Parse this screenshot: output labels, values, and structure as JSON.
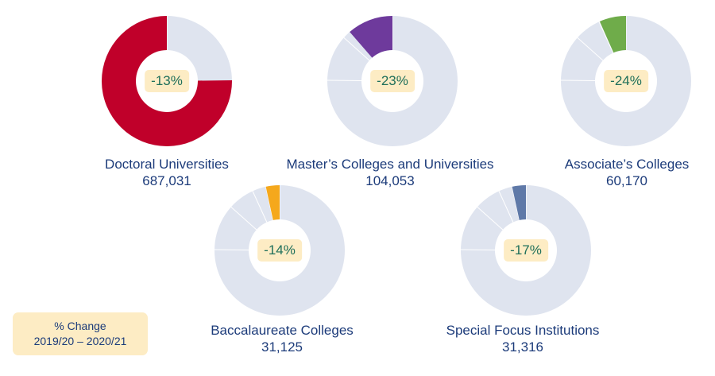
{
  "legend": {
    "line1": "% Change",
    "line2": "2019/20 – 2020/21"
  },
  "colors": {
    "track": "#dfe4ef",
    "separator": "#ffffff"
  },
  "chart_data": [
    {
      "type": "pie",
      "category": "Doctoral Universities",
      "value": "687,031",
      "share": 0.752,
      "pct_change": "-13%",
      "color": "#c0002a"
    },
    {
      "type": "pie",
      "category": "Master’s Colleges and Universities",
      "value": "104,053",
      "share": 0.114,
      "pct_change": "-23%",
      "color": "#6e3a9c"
    },
    {
      "type": "pie",
      "category": "Associate’s Colleges",
      "value": "60,170",
      "share": 0.066,
      "pct_change": "-24%",
      "color": "#6fac4a"
    },
    {
      "type": "pie",
      "category": "Baccalaureate Colleges",
      "value": "31,125",
      "share": 0.034,
      "pct_change": "-14%",
      "color": "#f5a81c"
    },
    {
      "type": "pie",
      "category": "Special Focus Institutions",
      "value": "31,316",
      "share": 0.034,
      "pct_change": "-17%",
      "color": "#5f79a8"
    }
  ]
}
